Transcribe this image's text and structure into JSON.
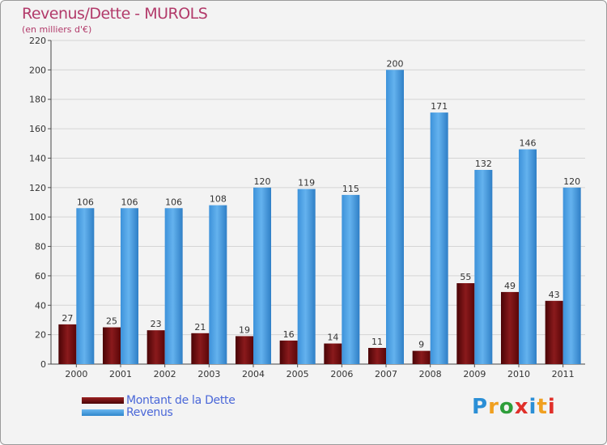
{
  "header": {
    "title": "Revenus/Dette - MUROLS",
    "subtitle": "(en milliers d'€)"
  },
  "chart_data": {
    "type": "bar",
    "title": "Revenus/Dette - MUROLS",
    "subtitle": "(en milliers d'€)",
    "categories": [
      "2000",
      "2001",
      "2002",
      "2003",
      "2004",
      "2005",
      "2006",
      "2007",
      "2008",
      "2009",
      "2010",
      "2011"
    ],
    "series": [
      {
        "name": "Montant de la Dette",
        "color": "#7a0f12",
        "values": [
          27,
          25,
          23,
          21,
          19,
          16,
          14,
          11,
          9,
          55,
          49,
          43
        ]
      },
      {
        "name": "Revenus",
        "color": "#4ea3e6",
        "values": [
          106,
          106,
          106,
          108,
          120,
          119,
          115,
          200,
          171,
          132,
          146,
          120
        ]
      }
    ],
    "ylim": [
      0,
      220
    ],
    "yticks": [
      0,
      20,
      40,
      60,
      80,
      100,
      120,
      140,
      160,
      180,
      200,
      220
    ],
    "grid": true,
    "legend_position": "bottom-left"
  },
  "legend": {
    "items": [
      {
        "label": "Montant de la Dette",
        "color": "#6b0a0c"
      },
      {
        "label": "Revenus",
        "color": "#4ea3e6"
      }
    ]
  },
  "logo": {
    "letters": [
      "P",
      "r",
      "o",
      "x",
      "i",
      "t",
      "i"
    ],
    "colors": [
      "#2b8fd6",
      "#f0a020",
      "#2e9e3a",
      "#e0302a",
      "#2b8fd6",
      "#f0a020",
      "#e0302a"
    ]
  }
}
